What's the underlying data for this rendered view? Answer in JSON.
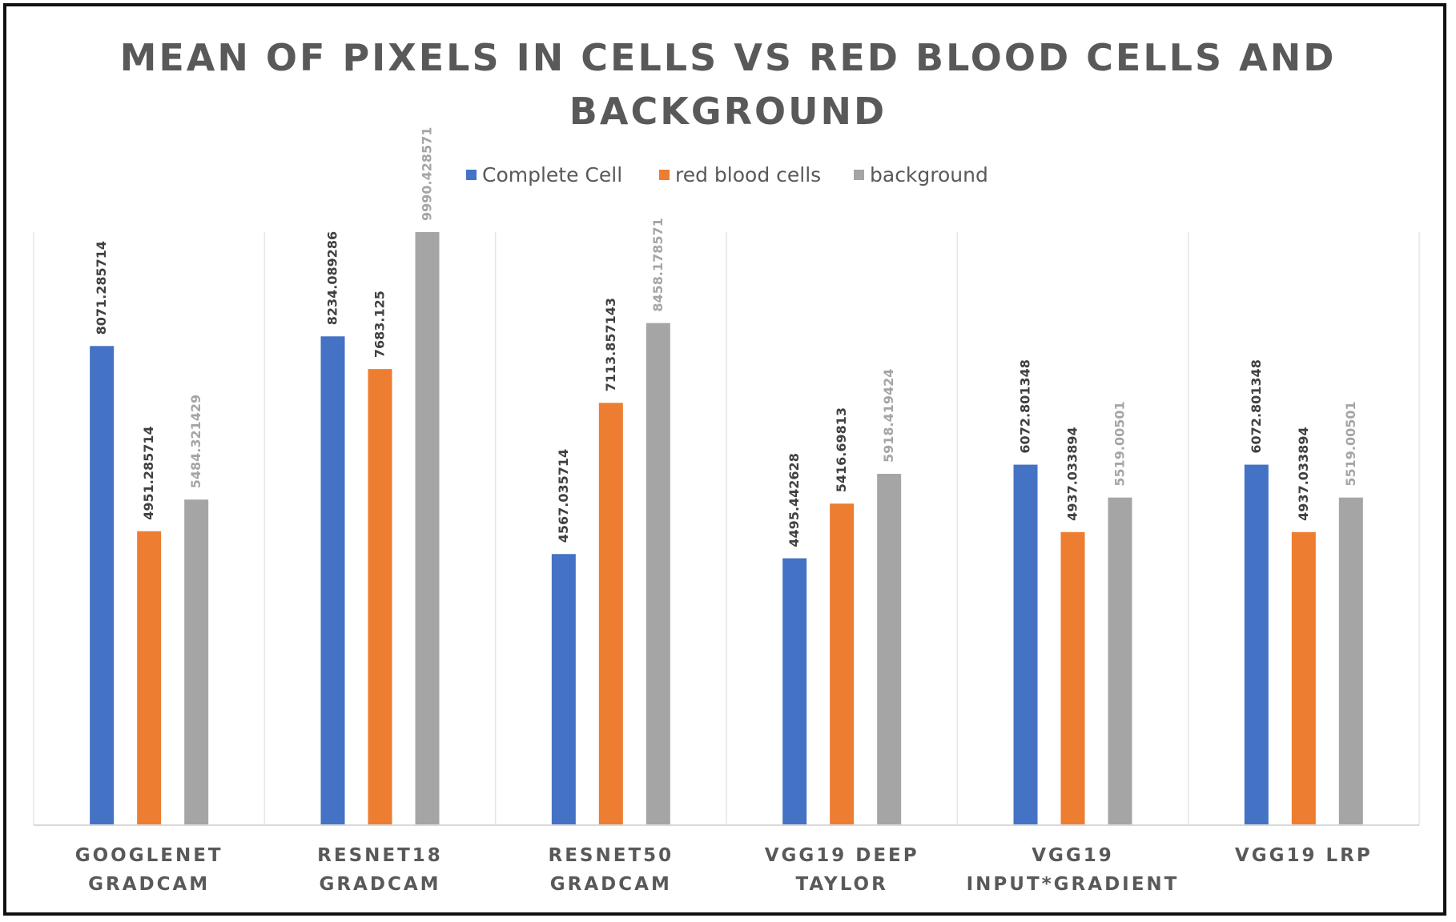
{
  "chart_data": {
    "type": "bar",
    "title": "MEAN OF PIXELS IN CELLS VS RED BLOOD CELLS AND BACKGROUND",
    "title_lines": [
      "MEAN OF PIXELS IN CELLS VS RED BLOOD CELLS AND",
      "BACKGROUND"
    ],
    "xlabel": "",
    "ylabel": "",
    "ylim": [
      0,
      10000
    ],
    "grid": "vertical category separators",
    "legend_position": "top",
    "categories": [
      [
        "GOOGLENET",
        "GRADCAM"
      ],
      [
        "RESNET18",
        "GRADCAM"
      ],
      [
        "RESNET50",
        "GRADCAM"
      ],
      [
        "VGG19 DEEP",
        "TAYLOR"
      ],
      [
        "VGG19",
        "INPUT*GRADIENT"
      ],
      [
        "VGG19 LRP"
      ]
    ],
    "series": [
      {
        "name": "Complete Cell",
        "color": "#4472c4",
        "values": [
          8071.285714,
          8234.089286,
          4567.035714,
          4495.442628,
          6072.801348,
          6072.801348
        ]
      },
      {
        "name": "red blood cells",
        "color": "#ed7d31",
        "values": [
          4951.285714,
          7683.125,
          7113.857143,
          5416.69813,
          4937.033894,
          4937.033894
        ]
      },
      {
        "name": "background",
        "color": "#a5a5a5",
        "values": [
          5484.321429,
          9990.428571,
          8458.178571,
          5918.419424,
          5519.00501,
          5519.00501
        ]
      }
    ],
    "data_labels": [
      [
        "8071.285714",
        "4951.285714",
        "5484.321429"
      ],
      [
        "8234.089286",
        "7683.125",
        "9990.428571"
      ],
      [
        "4567.035714",
        "7113.857143",
        "8458.178571"
      ],
      [
        "4495.442628",
        "5416.69813",
        "5918.419424"
      ],
      [
        "6072.801348",
        "4937.033894",
        "5519.00501"
      ],
      [
        "6072.801348",
        "4937.033894",
        "5519.00501"
      ]
    ],
    "data_label_colors": [
      "#404040",
      "#404040",
      "#a5a5a5"
    ]
  }
}
